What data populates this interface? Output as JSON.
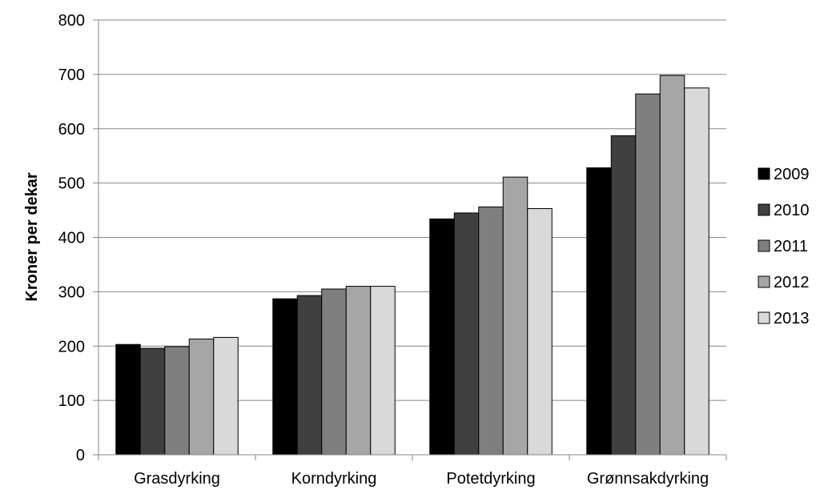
{
  "chart_data": {
    "type": "bar",
    "title": "",
    "xlabel": "",
    "ylabel": "Kroner per dekar",
    "ylim": [
      0,
      800
    ],
    "yticks": [
      0,
      100,
      200,
      300,
      400,
      500,
      600,
      700,
      800
    ],
    "grid": true,
    "legend_position": "right",
    "categories": [
      "Grasdyrking",
      "Korndyrking",
      "Potetdyrking",
      "Grønnsakdyrking"
    ],
    "series": [
      {
        "name": "2009",
        "color": "#000000",
        "values": [
          203,
          287,
          434,
          528
        ]
      },
      {
        "name": "2010",
        "color": "#404040",
        "values": [
          196,
          293,
          445,
          587
        ]
      },
      {
        "name": "2011",
        "color": "#7f7f7f",
        "values": [
          199,
          305,
          456,
          664
        ]
      },
      {
        "name": "2012",
        "color": "#a6a6a6",
        "values": [
          213,
          310,
          511,
          698
        ]
      },
      {
        "name": "2013",
        "color": "#d9d9d9",
        "values": [
          216,
          310,
          453,
          675
        ]
      }
    ]
  }
}
